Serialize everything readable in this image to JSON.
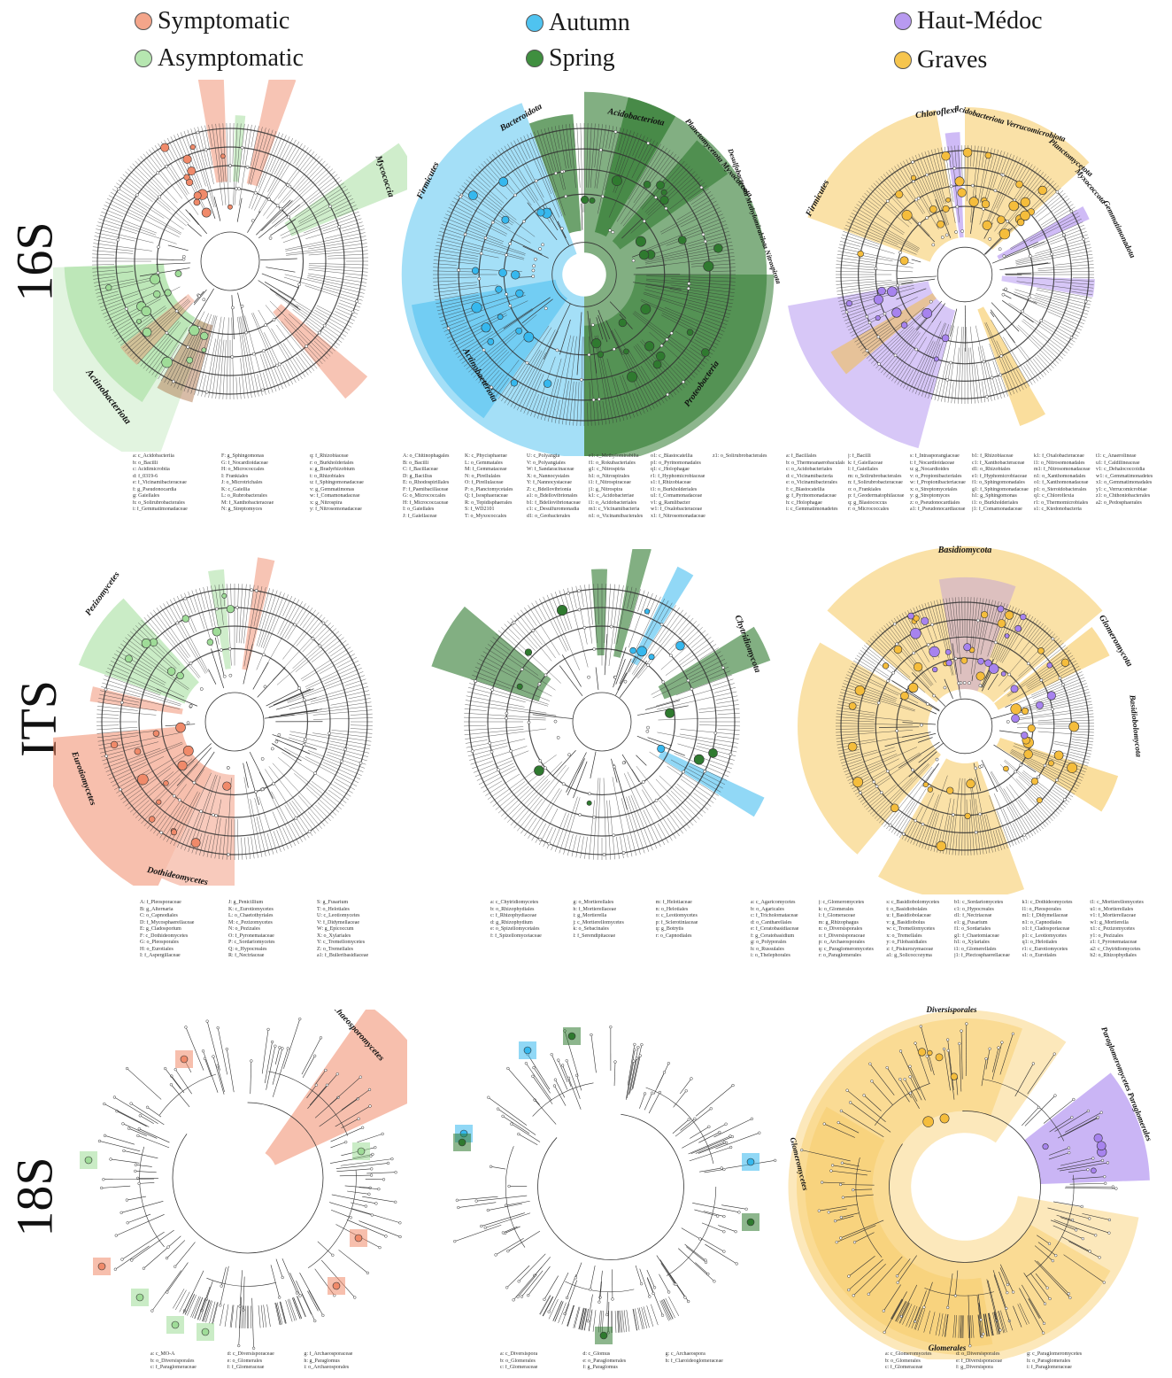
{
  "legend": {
    "groups": [
      {
        "items": [
          {
            "label": "Symptomatic",
            "color": "#f4a58a"
          },
          {
            "label": "Asymptomatic",
            "color": "#b6e6b0"
          }
        ]
      },
      {
        "items": [
          {
            "label": "Autumn",
            "color": "#4fc3f0"
          },
          {
            "label": "Spring",
            "color": "#3f8f3f"
          }
        ]
      },
      {
        "items": [
          {
            "label": "Haut-Médoc",
            "color": "#b89af0"
          },
          {
            "label": "Graves",
            "color": "#f6c54e"
          }
        ]
      }
    ]
  },
  "rows": [
    {
      "label": "16S"
    },
    {
      "label": "ITS"
    },
    {
      "label": "18S"
    }
  ],
  "colors": {
    "symptomatic": "#f08a6a",
    "asymptomatic": "#9fdc98",
    "autumn": "#36b8ee",
    "spring": "#2f7a2f",
    "haut_medoc": "#a783ee",
    "graves": "#f5bd3c",
    "tree": "#333333"
  },
  "panels": [
    {
      "id": "16s-symptom",
      "clades": [
        "Mycococcia",
        "Actinobacteriota"
      ]
    },
    {
      "id": "16s-season",
      "clades": [
        "Bacteroidota",
        "Acidobacteriota",
        "Planctomycetota Myxococcota",
        "Desulfobacterota Methylomirabilota Nitrospirota",
        "Firmicutes",
        "Actinobacteriota",
        "Proteobacteria"
      ]
    },
    {
      "id": "16s-region",
      "clades": [
        "Chloroflexi",
        "Acidobacteriota Verrucomicrobiota",
        "Planctomycetota",
        "Myxococcota",
        "Gemmatimonadota",
        "Firmicutes"
      ]
    },
    {
      "id": "its-symptom",
      "clades": [
        "Pezizomycetes",
        "Eurotiomycetes",
        "Dothideomycetes"
      ]
    },
    {
      "id": "its-season",
      "clades": [
        "Chytridiomycota"
      ]
    },
    {
      "id": "its-region",
      "clades": [
        "Basidiomycota",
        "Glomeromycota",
        "Basidiobolomycota"
      ]
    },
    {
      "id": "18s-symptom",
      "clades": [
        "Archaeosporomycetes"
      ]
    },
    {
      "id": "18s-season",
      "clades": []
    },
    {
      "id": "18s-region",
      "clades": [
        "Diversisporales",
        "Paraglomeromycetes Paraglomerales",
        "Glomeromycetes",
        "Glomerales"
      ]
    }
  ],
  "keys": [
    {
      "id": "key-16s-symptom",
      "columns": [
        [
          "a: c_Acidobacteriia",
          "b: o_Bacilli",
          "c: Acidimicrobiia",
          "d: f_0319-6",
          "e: f_Vicinamibacteraceae",
          "f: g_Pseudonocardia",
          "g: Gaiellales",
          "h: o_Solirubrobacterales",
          "i: f_Gemmatimonadaceae"
        ],
        [
          "F: g_Sphingomonas",
          "G: f_Nocardioidaceae",
          "H: o_Micrococcales",
          "I: Frankiales",
          "J: o_Microtrichales",
          "K: c_Gaiellia",
          "L: o_Rubrobacterales",
          "M: f_Xanthobacteraceae",
          "N: g_Streptomyces"
        ],
        [
          "q: f_Rhizobiaceae",
          "r: o_Burkholderiales",
          "s: g_Bradyrhizobium",
          "t: o_Rhizobiales",
          "u: f_Sphingomonadaceae",
          "v: g_Gemmatimonas",
          "w: f_Comamonadaceae",
          "x: g_Nitrospira",
          "y: f_Nitrosomonadaceae"
        ]
      ]
    },
    {
      "id": "key-16s-season",
      "columns": [
        [
          "A: o_Chitinophagales",
          "B: o_Bacilli",
          "C: f_Bacillaceae",
          "D: g_Bacillus",
          "E: o_Rhodospirillales",
          "F: f_Paenibacillaceae",
          "G: o_Micrococcales",
          "H: f_Micrococcaceae",
          "I: o_Gaiellales",
          "J: f_Gaiellaceae"
        ],
        [
          "K: c_Phycisphaerae",
          "L: o_Gemmatales",
          "M: f_Gemmataceae",
          "N: o_Pirellulales",
          "O: f_Pirellulaceae",
          "P: o_Planctomycetales",
          "Q: f_Isosphaeraceae",
          "R: o_Tepidisphaerales",
          "S: f_WD2101",
          "T: o_Myxococcales"
        ],
        [
          "U: c_Polyangia",
          "V: o_Polyangiales",
          "W: f_Sandaracinaceae",
          "X: o_Nannocystales",
          "Y: f_Nannocystaceae",
          "Z: c_Bdellovibrionia",
          "a1: o_Bdellovibrionales",
          "b1: f_Bdellovibrionaceae",
          "c1: c_Desulfuromonadia",
          "d1: o_Geobacterales"
        ],
        [
          "e1: c_Methylomirabilia",
          "f1: o_Rokubacteriales",
          "g1: c_Nitrospiria",
          "h1: o_Nitrospirales",
          "i1: f_Nitrospiraceae",
          "j1: g_Nitrospira",
          "k1: c_Acidobacteriae",
          "l1: o_Acidobacteriales",
          "m1: c_Vicinamibacteria",
          "n1: o_Vicinamibacterales"
        ],
        [
          "o1: c_Blastocatellia",
          "p1: o_Pyrinomonadales",
          "q1: c_Holophagae",
          "r1: f_Hyphomicrobiaceae",
          "s1: f_Rhizobiaceae",
          "t1: o_Burkholderiales",
          "u1: f_Comamonadaceae",
          "v1: g_Ramlibacter",
          "w1: f_Oxalobacteraceae",
          "x1: f_Nitrosomonadaceae"
        ],
        [
          "z1: o_Solirubrobacterales"
        ]
      ]
    },
    {
      "id": "key-16s-region",
      "columns": [
        [
          "a: f_Bacillales",
          "b: o_Thermoanaerobaculales",
          "c: o_Acidobacteriales",
          "d: c_Vicinamibacteria",
          "e: o_Vicinamibacterales",
          "f: c_Blastocatellia",
          "g: f_Pyrinomonadaceae",
          "h: c_Holophagae",
          "i: c_Gemmatimonadetes"
        ],
        [
          "j: f_Bacilli",
          "k: f_Gaiellaceae",
          "l: f_Gaiellales",
          "m: o_Solirubrobacterales",
          "n: f_Solirubrobacteraceae",
          "o: o_Frankiales",
          "p: f_Geodermatophilaceae",
          "q: g_Blastococcus",
          "r: o_Micrococcales"
        ],
        [
          "s: f_Intrasporangiaceae",
          "t: f_Nocardioidaceae",
          "u: g_Nocardioides",
          "v: o_Propionibacteriales",
          "w: f_Propionibacteriaceae",
          "x: o_Streptomycetales",
          "y: g_Streptomyces",
          "z: o_Pseudonocardiales",
          "a1: f_Pseudonocardiaceae"
        ],
        [
          "b1: f_Rhizobiaceae",
          "c1: f_Xanthobacteraceae",
          "d1: o_Rhizobiales",
          "e1: f_Hyphomicrobiaceae",
          "f1: o_Sphingomonadales",
          "g1: f_Sphingomonadaceae",
          "h1: g_Sphingomonas",
          "i1: o_Burkholderiales",
          "j1: f_Comamonadaceae"
        ],
        [
          "k1: f_Oxalobacteraceae",
          "l1: o_Nitrosomonadales",
          "m1: f_Nitrosomonadaceae",
          "n1: o_Xanthomonadales",
          "o1: f_Xanthomonadaceae",
          "p1: o_Steroidobacterales",
          "q1: c_Chloroflexia",
          "r1: o_Thermomicrobiales",
          "s1: c_Ktedonobacteria"
        ],
        [
          "t1: c_Anaerolineae",
          "u1: f_Caldilineaceae",
          "v1: c_Dehalococcoidia",
          "w1: c_Gemmatimonadetes",
          "x1: o_Gemmatimonadales",
          "y1: c_Verrucomicrobiae",
          "z1: o_Chthoniobacterales",
          "a2: o_Pedosphaerales"
        ]
      ]
    },
    {
      "id": "key-its-symptom",
      "columns": [
        [
          "A: f_Pleosporaceae",
          "B: g_Alternaria",
          "C: o_Capnodiales",
          "D: f_Mycosphaerellaceae",
          "E: g_Cladosporium",
          "F: c_Dothideomycetes",
          "G: o_Pleosporales",
          "H: o_Eurotiales",
          "I: f_Aspergillaceae"
        ],
        [
          "J: g_Penicillium",
          "K: c_Eurotiomycetes",
          "L: o_Chaetothyriales",
          "M: c_Pezizomycetes",
          "N: o_Pezizales",
          "O: f_Pyronemataceae",
          "P: c_Sordariomycetes",
          "Q: o_Hypocreales",
          "R: f_Nectriaceae"
        ],
        [
          "S: g_Fusarium",
          "T: o_Helotiales",
          "U: c_Leotiomycetes",
          "V: f_Didymellaceae",
          "W: g_Epicoccum",
          "X: o_Xylariales",
          "Y: c_Tremellomycetes",
          "Z: o_Tremellales",
          "a1: f_Bulleribasidiaceae"
        ]
      ]
    },
    {
      "id": "key-its-season",
      "columns": [
        [
          "a: c_Chytridiomycetes",
          "b: o_Rhizophydiales",
          "c: f_Rhizophydiaceae",
          "d: g_Rhizophydium",
          "e: o_Spizellomycetales",
          "f: f_Spizellomycetaceae"
        ],
        [
          "g: o_Mortierellales",
          "h: f_Mortierellaceae",
          "i: g_Mortierella",
          "j: c_Mortierellomycetes",
          "k: o_Sebacinales",
          "l: f_Serendipitaceae"
        ],
        [
          "m: f_Helotiaceae",
          "n: o_Helotiales",
          "o: c_Leotiomycetes",
          "p: f_Sclerotiniaceae",
          "q: g_Botrytis",
          "r: o_Capnodiales"
        ]
      ]
    },
    {
      "id": "key-its-region",
      "columns": [
        [
          "a: c_Agaricomycetes",
          "b: o_Agaricales",
          "c: f_Tricholomataceae",
          "d: o_Cantharellales",
          "e: f_Ceratobasidiaceae",
          "f: g_Ceratobasidium",
          "g: o_Polyporales",
          "h: o_Russulales",
          "i: o_Thelephorales"
        ],
        [
          "j: c_Glomeromycetes",
          "k: o_Glomerales",
          "l: f_Glomeraceae",
          "m: g_Rhizophagus",
          "n: o_Diversisporales",
          "o: f_Diversisporaceae",
          "p: o_Archaeosporales",
          "q: c_Paraglomeromycetes",
          "r: o_Paraglomerales"
        ],
        [
          "s: c_Basidiobolomycetes",
          "t: o_Basidiobolales",
          "u: f_Basidiobolaceae",
          "v: g_Basidiobolus",
          "w: c_Tremellomycetes",
          "x: o_Tremellales",
          "y: o_Filobasidiales",
          "z: f_Piskurozymaceae",
          "a1: g_Solicoccozyma"
        ],
        [
          "b1: c_Sordariomycetes",
          "c1: o_Hypocreales",
          "d1: f_Nectriaceae",
          "e1: g_Fusarium",
          "f1: o_Sordariales",
          "g1: f_Chaetomiaceae",
          "h1: o_Xylariales",
          "i1: o_Glomerellales",
          "j1: f_Plectosphaerellaceae"
        ],
        [
          "k1: c_Dothideomycetes",
          "l1: o_Pleosporales",
          "m1: f_Didymellaceae",
          "n1: o_Capnodiales",
          "o1: f_Cladosporiaceae",
          "p1: c_Leotiomycetes",
          "q1: o_Helotiales",
          "r1: c_Eurotiomycetes",
          "s1: o_Eurotiales"
        ],
        [
          "t1: c_Mortierellomycetes",
          "u1: o_Mortierellales",
          "v1: f_Mortierellaceae",
          "w1: g_Mortierella",
          "x1: c_Pezizomycetes",
          "y1: o_Pezizales",
          "z1: f_Pyronemataceae",
          "a2: c_Chytridiomycetes",
          "b2: o_Rhizophydiales"
        ]
      ]
    },
    {
      "id": "key-18s-symptom",
      "columns": [
        [
          "a: c_MO-A",
          "b: o_Diversisporales",
          "c: f_Paraglomeraceae"
        ],
        [
          "d: c_Diversisporaceae",
          "e: o_Glomerales",
          "f: f_Glomeraceae"
        ],
        [
          "g: f_Archaeosporaceae",
          "h: g_Paraglomus",
          "i: o_Archaeosporales"
        ]
      ]
    },
    {
      "id": "key-18s-season",
      "columns": [
        [
          "a: c_Diversispora",
          "b: o_Glomerales",
          "c: f_Glomeraceae"
        ],
        [
          "d: c_Glomus",
          "e: o_Paraglomerales",
          "f: g_Paraglomus"
        ],
        [
          "g: c_Archaeospora",
          "h: f_Claroideoglomeraceae"
        ]
      ]
    },
    {
      "id": "key-18s-region",
      "columns": [
        [
          "a: c_Glomeromycetes",
          "b: o_Glomerales",
          "c: f_Glomeraceae"
        ],
        [
          "d: o_Diversisporales",
          "e: f_Diversisporaceae",
          "f: g_Diversispora"
        ],
        [
          "g: c_Paraglomeromycetes",
          "h: o_Paraglomerales",
          "i: f_Paraglomeraceae"
        ]
      ]
    }
  ]
}
